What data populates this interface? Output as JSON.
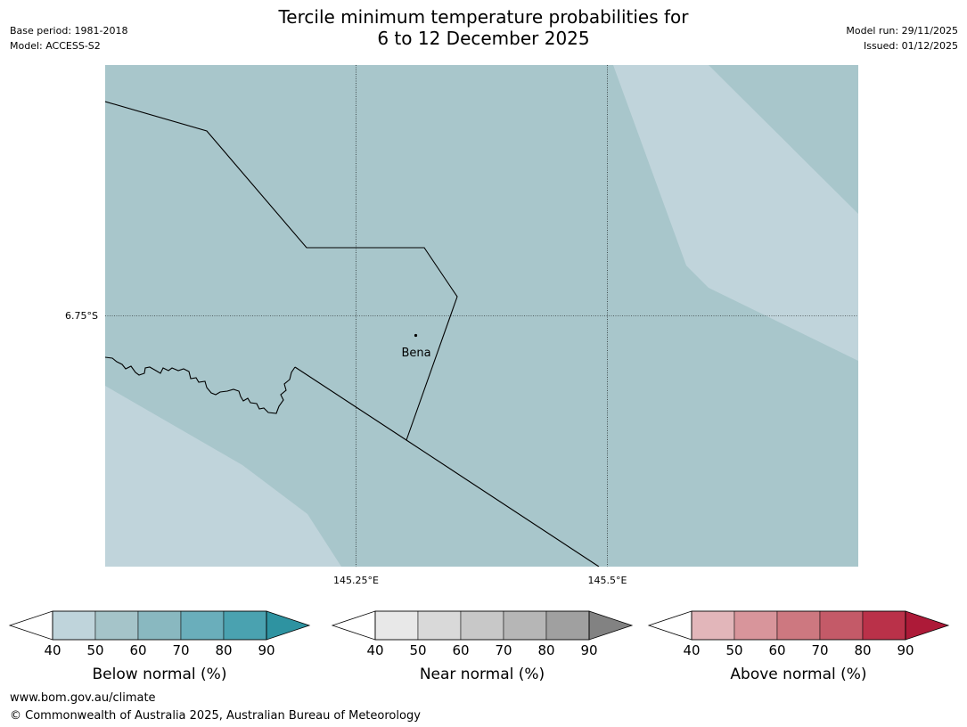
{
  "header": {
    "title_line1": "Tercile minimum temperature probabilities for",
    "title_line2": "6 to 12 December 2025",
    "base_period": "Base period: 1981-2018",
    "model": "Model: ACCESS-S2",
    "model_run": "Model run: 29/11/2025",
    "issued": "Issued: 01/12/2025"
  },
  "map": {
    "lat_label": "6.75°S",
    "lon_labels": [
      "145.25°E",
      "145.5°E"
    ],
    "town": {
      "name": "Bena"
    },
    "region_colors": {
      "below_50_60": "#a8c6cb",
      "below_40_50": "#c0d4db"
    }
  },
  "legends": [
    {
      "title": "Below normal (%)",
      "ticks": [
        "40",
        "50",
        "60",
        "70",
        "80",
        "90"
      ],
      "colors": [
        "#ffffff",
        "#bfd4db",
        "#a5c4c9",
        "#89b8c0",
        "#6aaebb",
        "#4aa2b0",
        "#2e93a1"
      ]
    },
    {
      "title": "Near normal (%)",
      "ticks": [
        "40",
        "50",
        "60",
        "70",
        "80",
        "90"
      ],
      "colors": [
        "#ffffff",
        "#e8e8e8",
        "#d9d9d9",
        "#c8c8c8",
        "#b6b6b6",
        "#a0a0a0",
        "#828282"
      ]
    },
    {
      "title": "Above normal (%)",
      "ticks": [
        "40",
        "50",
        "60",
        "70",
        "80",
        "90"
      ],
      "colors": [
        "#ffffff",
        "#e2b6ba",
        "#d8959b",
        "#cd7880",
        "#c45a68",
        "#ba3149",
        "#ad1a38"
      ]
    }
  ],
  "footer": {
    "url": "www.bom.gov.au/climate",
    "copyright": "© Commonwealth of Australia 2025, Australian Bureau of Meteorology"
  }
}
